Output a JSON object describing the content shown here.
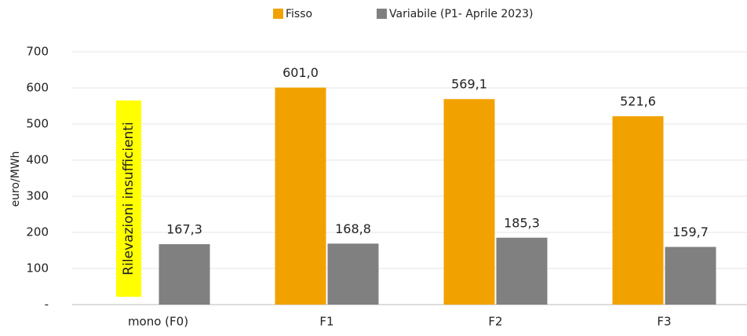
{
  "chart_data": {
    "type": "bar",
    "ylabel": "euro/MWh",
    "annotation": "Rilevazioni insufficienti",
    "categories": [
      "mono (F0)",
      "F1",
      "F2",
      "F3"
    ],
    "series": [
      {
        "name": "Fisso",
        "color": "#f2a200",
        "values": [
          null,
          601.0,
          569.1,
          521.6
        ],
        "value_labels": [
          null,
          "601,0",
          "569,1",
          "521,6"
        ]
      },
      {
        "name": "Variabile (P1- Aprile 2023)",
        "color": "#808080",
        "values": [
          167.3,
          168.8,
          185.3,
          159.7
        ],
        "value_labels": [
          "167,3",
          "168,8",
          "185,3",
          "159,7"
        ]
      }
    ],
    "ylim": [
      0,
      700
    ],
    "yticks": [
      {
        "value": 0,
        "label": "-"
      },
      100,
      200,
      300,
      400,
      500,
      600,
      700
    ],
    "grid": true,
    "legend": "top"
  }
}
